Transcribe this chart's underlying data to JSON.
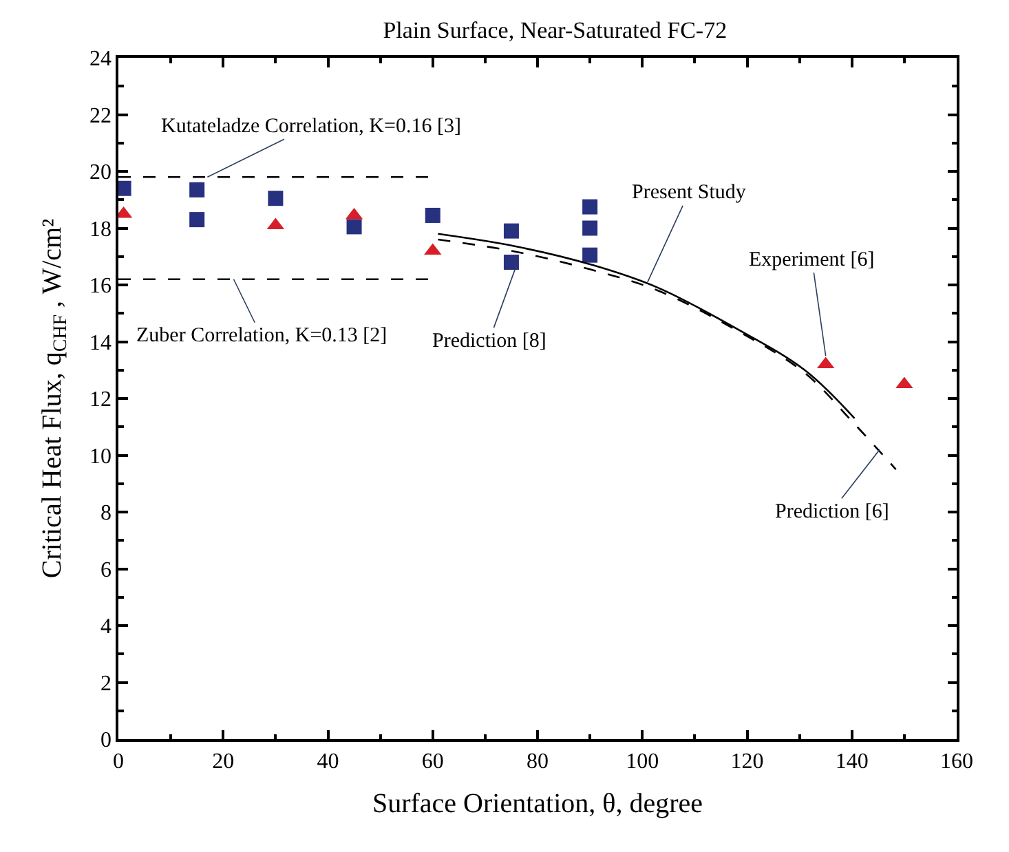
{
  "chart_data": {
    "type": "scatter",
    "title": "Plain Surface, Near-Saturated FC-72",
    "xlabel": "Surface Orientation, θ, degree",
    "ylabel": "Critical Heat Flux, q$_{CHF}$ , W/cm²",
    "xlim": [
      0,
      160
    ],
    "xticks": [
      0,
      20,
      40,
      60,
      80,
      100,
      120,
      140,
      160
    ],
    "ylim": [
      0,
      24
    ],
    "yticks": [
      0,
      2,
      4,
      6,
      8,
      10,
      12,
      14,
      16,
      18,
      20,
      22,
      24
    ],
    "series": [
      {
        "marker": "square",
        "color": "#283180",
        "x": [
          1,
          15,
          15,
          30,
          45,
          60,
          75,
          75,
          90,
          90,
          90
        ],
        "values": [
          19.4,
          19.35,
          18.3,
          19.05,
          18.05,
          18.45,
          17.9,
          16.8,
          18.75,
          18.0,
          17.05
        ]
      },
      {
        "marker": "triangle",
        "color": "#d81e2a",
        "x": [
          1,
          30,
          45,
          60,
          135,
          150
        ],
        "values": [
          18.5,
          18.1,
          18.45,
          17.2,
          13.2,
          12.5
        ]
      },
      {
        "type": "line",
        "line_style": "solid",
        "color": "#000000",
        "x": [
          61,
          75.5,
          90.5,
          103,
          117.6,
          131,
          140.5
        ],
        "values": [
          17.8,
          17.37,
          16.7,
          15.9,
          14.5,
          13.0,
          11.3
        ]
      },
      {
        "type": "line",
        "line_style": "dashed",
        "color": "#000000",
        "x": [
          61,
          75,
          90,
          103,
          118,
          131,
          140,
          148.4
        ],
        "values": [
          17.6,
          17.2,
          16.55,
          15.8,
          14.4,
          12.9,
          11.2,
          9.5
        ]
      },
      {
        "type": "line",
        "line_style": "dashed",
        "color": "#000000",
        "x": [
          0,
          60
        ],
        "values": [
          19.8,
          19.8
        ]
      },
      {
        "type": "line",
        "line_style": "dashed",
        "color": "#000000",
        "x": [
          0,
          60
        ],
        "values": [
          16.2,
          16.2
        ]
      }
    ],
    "annotations": [
      {
        "text": "Kutateladze Correlation, K=0.16 [3]",
        "x": 17,
        "y": 19.8
      },
      {
        "text": "Zuber Correlation, K=0.13 [2]",
        "x": 22,
        "y": 16.2
      },
      {
        "text": "Prediction [8]",
        "x": 76,
        "y": 16.7
      },
      {
        "text": "Present Study",
        "x": 101,
        "y": 16.1
      },
      {
        "text": "Experiment [6]",
        "x": 135,
        "y": 13.5
      },
      {
        "text": "Prediction [6]",
        "x": 145.3,
        "y": 10.2
      }
    ]
  }
}
